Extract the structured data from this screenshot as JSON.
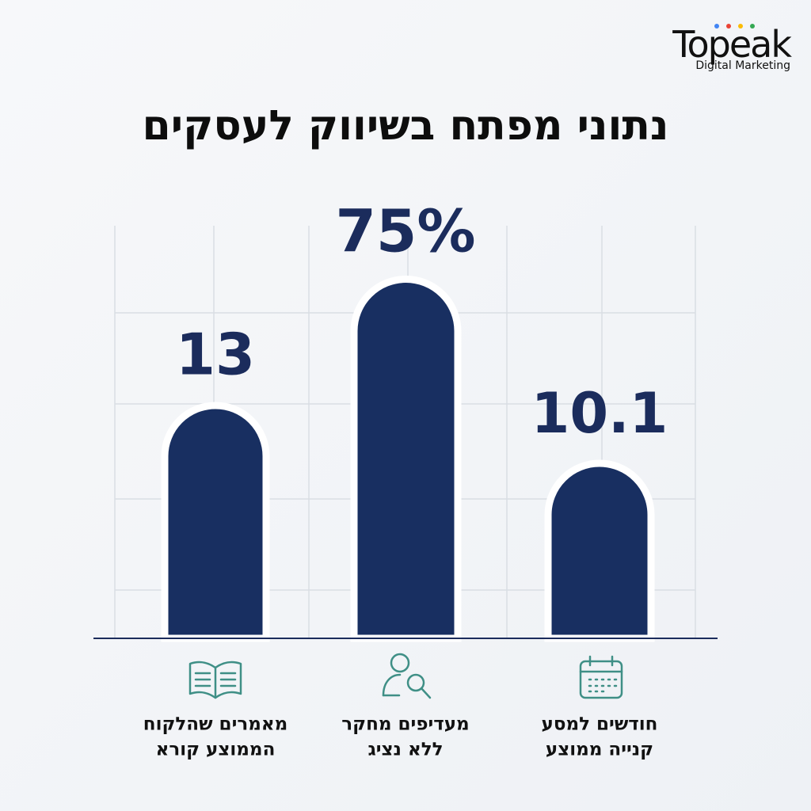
{
  "logo": {
    "name": "Topeak",
    "tagline": "Digital Marketing"
  },
  "title": "נתוני מפתח בשיווק לעסקים",
  "stats": [
    {
      "value": "10.1",
      "label": [
        "חודשים למסע",
        "קנייה ממוצע"
      ]
    },
    {
      "value": "75%",
      "label": [
        "מעדיפים מחקר",
        "ללא נציג"
      ]
    },
    {
      "value": "13",
      "label": [
        "מאמרים שהלקוח",
        "הממוצע קורא"
      ]
    }
  ]
}
